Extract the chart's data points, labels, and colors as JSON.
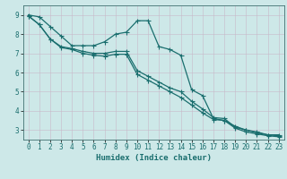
{
  "xlabel": "Humidex (Indice chaleur)",
  "ylabel": "",
  "xlim": [
    -0.5,
    23.5
  ],
  "ylim": [
    2.5,
    9.5
  ],
  "yticks": [
    3,
    4,
    5,
    6,
    7,
    8,
    9
  ],
  "xticks": [
    0,
    1,
    2,
    3,
    4,
    5,
    6,
    7,
    8,
    9,
    10,
    11,
    12,
    13,
    14,
    15,
    16,
    17,
    18,
    19,
    20,
    21,
    22,
    23
  ],
  "bg_color": "#cde8e8",
  "line_color": "#1a6e6e",
  "line1_x": [
    0,
    1,
    2,
    3,
    4,
    5,
    6,
    7,
    8,
    9,
    10,
    11,
    12,
    13,
    14,
    15,
    16,
    17,
    18,
    19,
    20,
    21,
    22,
    23
  ],
  "line1_y": [
    9.0,
    8.9,
    8.4,
    7.9,
    7.4,
    7.4,
    7.4,
    7.6,
    8.0,
    8.1,
    8.7,
    8.7,
    7.35,
    7.2,
    6.9,
    5.1,
    4.8,
    3.6,
    3.5,
    3.2,
    3.0,
    2.9,
    2.75,
    2.75
  ],
  "line2_x": [
    0,
    1,
    2,
    3,
    4,
    5,
    6,
    7,
    8,
    9,
    10,
    11,
    12,
    13,
    14,
    15,
    16,
    17,
    18,
    19,
    20,
    21,
    22,
    23
  ],
  "line2_y": [
    8.95,
    8.5,
    7.75,
    7.35,
    7.25,
    7.1,
    7.0,
    7.0,
    7.1,
    7.1,
    6.1,
    5.8,
    5.5,
    5.2,
    5.0,
    4.5,
    4.1,
    3.65,
    3.6,
    3.15,
    3.0,
    2.85,
    2.75,
    2.7
  ],
  "line3_x": [
    0,
    1,
    2,
    3,
    4,
    5,
    6,
    7,
    8,
    9,
    10,
    11,
    12,
    13,
    14,
    15,
    16,
    17,
    18,
    19,
    20,
    21,
    22,
    23
  ],
  "line3_y": [
    8.95,
    8.5,
    7.75,
    7.3,
    7.2,
    7.0,
    6.9,
    6.85,
    6.95,
    6.95,
    5.9,
    5.6,
    5.3,
    5.0,
    4.7,
    4.3,
    3.9,
    3.55,
    3.5,
    3.1,
    2.9,
    2.8,
    2.7,
    2.65
  ],
  "tick_fontsize": 5.5,
  "label_fontsize": 6.5
}
